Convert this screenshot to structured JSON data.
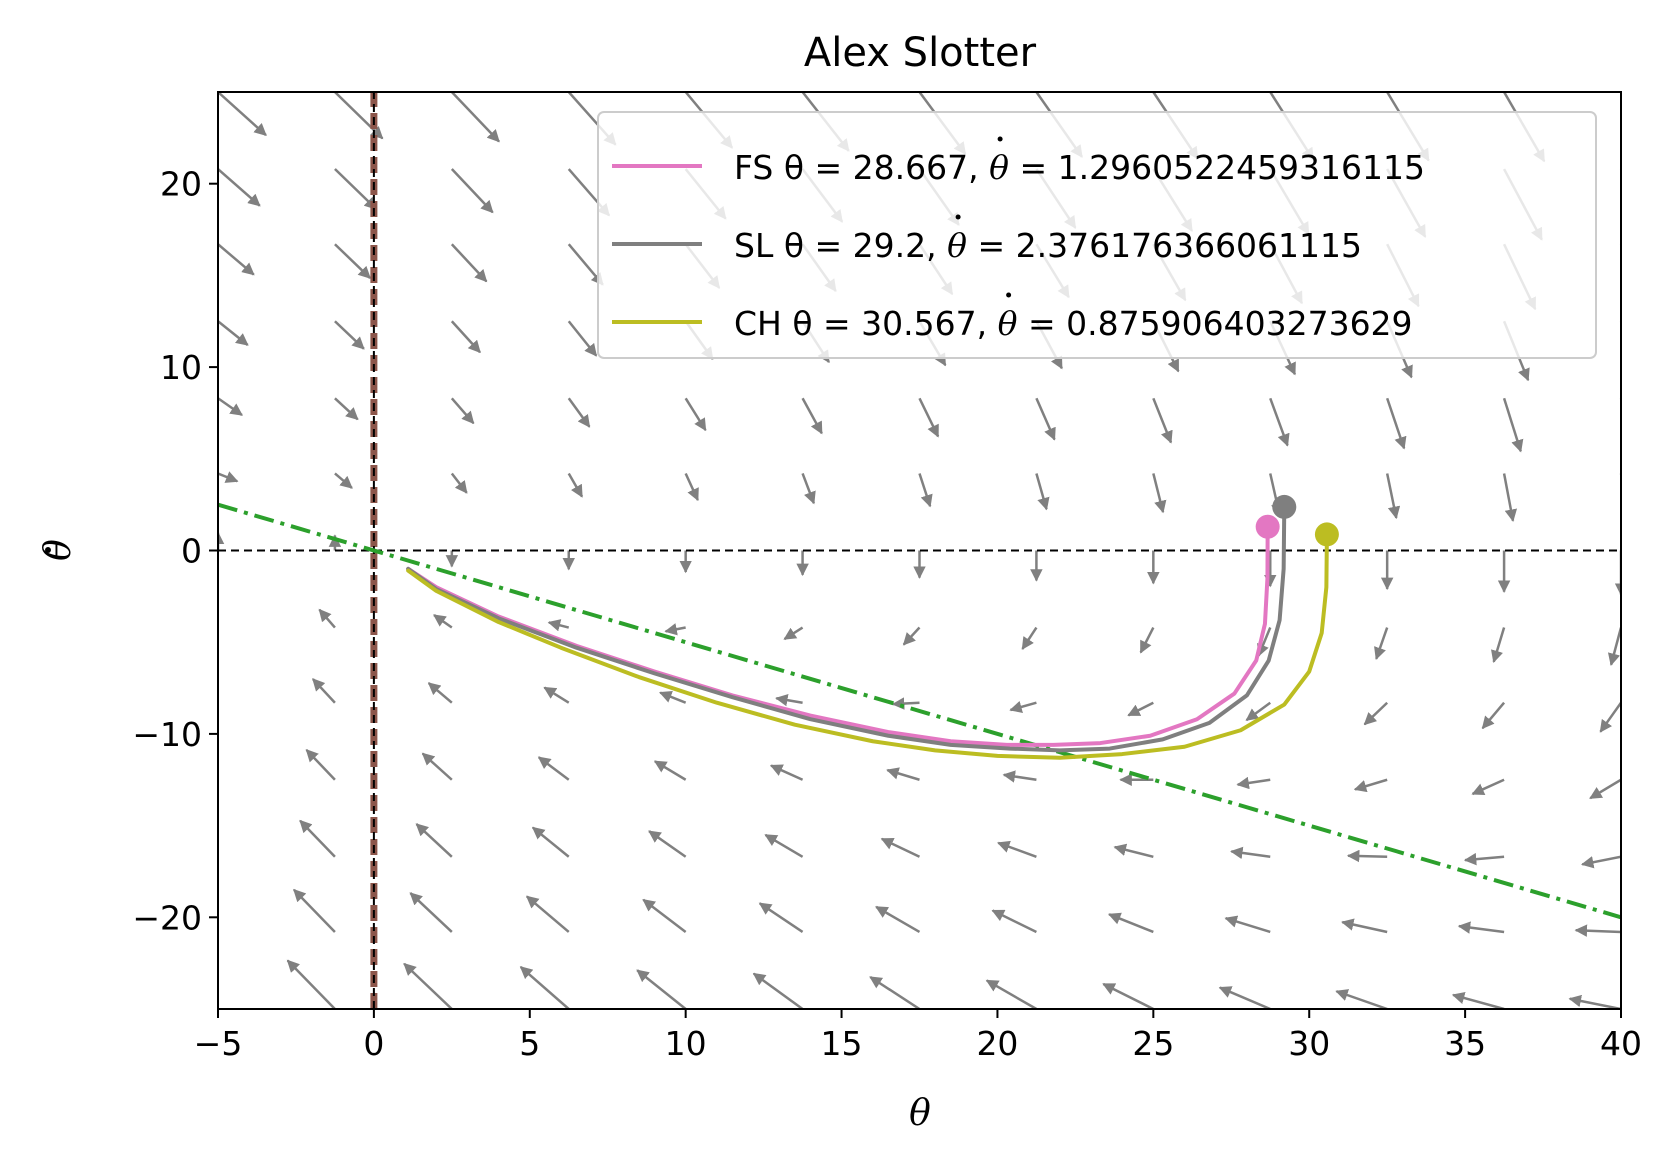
{
  "chart_data": {
    "type": "line",
    "title": "Alex Slotter",
    "xlabel": "θ",
    "ylabel": "θ̇",
    "xlim": [
      -5,
      40
    ],
    "ylim": [
      -25,
      25
    ],
    "xticks": [
      -5,
      0,
      5,
      10,
      15,
      20,
      25,
      30,
      35,
      40
    ],
    "xtick_labels": [
      "−5",
      "0",
      "5",
      "10",
      "15",
      "20",
      "25",
      "30",
      "35",
      "40"
    ],
    "yticks": [
      -20,
      -10,
      0,
      10,
      20
    ],
    "ytick_labels": [
      "−20",
      "−10",
      "0",
      "10",
      "20"
    ],
    "grid": false,
    "legend_position": "top-right",
    "colors": {
      "FS": "#e377c2",
      "SL": "#7f7f7f",
      "CH": "#bcbd22",
      "nullcline": "#2ca02c",
      "vline": "#8c564b",
      "quiver": "#808080"
    },
    "series": [
      {
        "name": "FS θ = 28.667, θ̇ = 1.2960522459316115",
        "label_prefix": "FS θ = 28.667, ",
        "label_suffix": " = 1.2960522459316115",
        "color": "#e377c2",
        "start": [
          28.667,
          1.296
        ],
        "x": [
          28.667,
          28.66,
          28.58,
          28.3,
          27.6,
          26.4,
          24.9,
          23.3,
          21.8,
          20.3,
          18.5,
          16.5,
          14.0,
          11.5,
          9.0,
          6.5,
          4.0,
          2.0,
          1.1
        ],
        "y": [
          1.296,
          -1.5,
          -4.0,
          -6.0,
          -7.8,
          -9.2,
          -10.1,
          -10.5,
          -10.6,
          -10.6,
          -10.4,
          -9.9,
          -9.0,
          -7.9,
          -6.6,
          -5.2,
          -3.6,
          -2.0,
          -1.0
        ]
      },
      {
        "name": "SL θ = 29.2, θ̇ = 2.376176366061115",
        "label_prefix": "SL θ = 29.2, ",
        "label_suffix": " = 2.376176366061115",
        "color": "#7f7f7f",
        "start": [
          29.2,
          2.376
        ],
        "x": [
          29.2,
          29.18,
          29.05,
          28.7,
          28.0,
          26.8,
          25.3,
          23.6,
          22.0,
          20.4,
          18.5,
          16.5,
          14.0,
          11.5,
          9.0,
          6.5,
          4.0,
          2.0,
          1.1
        ],
        "y": [
          2.376,
          -1.0,
          -3.8,
          -6.0,
          -7.9,
          -9.4,
          -10.3,
          -10.8,
          -10.9,
          -10.8,
          -10.6,
          -10.1,
          -9.2,
          -8.0,
          -6.7,
          -5.3,
          -3.7,
          -2.1,
          -1.0
        ]
      },
      {
        "name": "CH θ = 30.567, θ̇ = 0.875906403273629",
        "label_prefix": "CH θ = 30.567, ",
        "label_suffix": " = 0.875906403273629",
        "color": "#bcbd22",
        "start": [
          30.567,
          0.876
        ],
        "x": [
          30.567,
          30.55,
          30.4,
          30.0,
          29.2,
          27.8,
          26.0,
          24.0,
          22.0,
          20.0,
          18.0,
          16.0,
          13.5,
          11.0,
          8.5,
          6.0,
          4.0,
          2.0,
          1.1
        ],
        "y": [
          0.876,
          -2.0,
          -4.5,
          -6.6,
          -8.4,
          -9.8,
          -10.7,
          -11.1,
          -11.3,
          -11.2,
          -10.9,
          -10.4,
          -9.5,
          -8.3,
          -6.9,
          -5.3,
          -3.9,
          -2.2,
          -1.1
        ]
      }
    ],
    "reference_lines": {
      "horizontal_y": 0,
      "vertical_x": 0,
      "dashdot_line": {
        "x": [
          -5,
          40
        ],
        "y": [
          2.5,
          -20.0
        ]
      }
    },
    "vector_field": {
      "x_grid": [
        -5,
        -1.25,
        2.5,
        6.25,
        10,
        13.75,
        17.5,
        21.25,
        25,
        28.75,
        32.5,
        36.25,
        40
      ],
      "y_grid": [
        -25,
        -20.8,
        -16.7,
        -12.5,
        -8.3,
        -4.2,
        0,
        4.2,
        8.3,
        12.5,
        16.7,
        20.8,
        25
      ],
      "model": "dx = y, dy = -0.5 * x - y"
    }
  }
}
